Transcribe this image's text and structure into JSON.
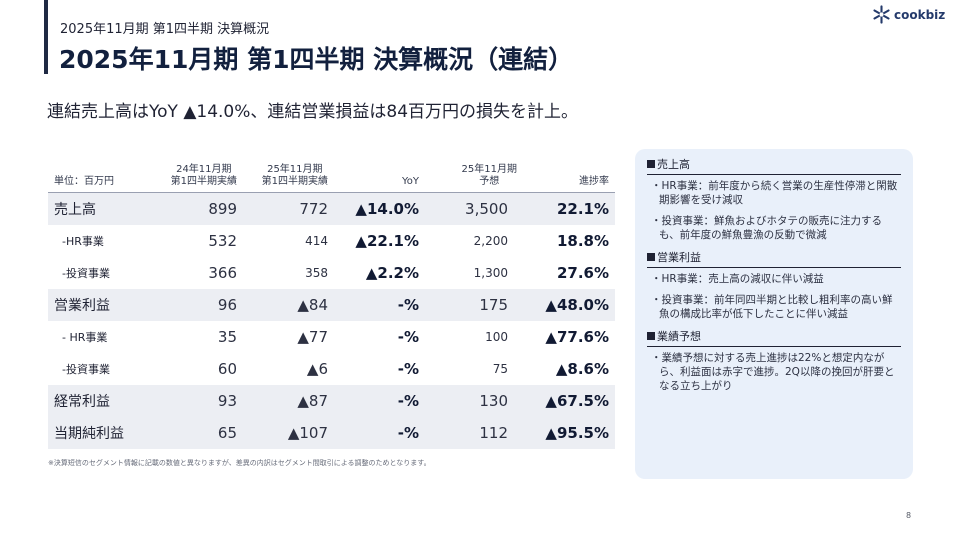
{
  "header": {
    "subtitle": "2025年11月期 第1四半期 決算概況",
    "title": "2025年11月期 第1四半期 決算概況（連結）"
  },
  "logo": {
    "text": "cookbiz",
    "icon": "snowflake-star-icon"
  },
  "lead": "連結売上高はYoY ▲14.0%、連結営業損益は84百万円の損失を計上。",
  "table": {
    "columns": {
      "label": "単位：百万円",
      "y24": [
        "24年11月期",
        "第1四半期実績"
      ],
      "y25": [
        "25年11月期",
        "第1四半期実績"
      ],
      "yoy": "YoY",
      "forecast": [
        "25年11月期",
        "予想"
      ],
      "progress": "進捗率"
    },
    "rows": [
      {
        "label": "売上高",
        "y24": "899",
        "y25": "772",
        "yoy": "▲14.0%",
        "forecast": "3,500",
        "progress": "22.1%"
      },
      {
        "label": "-HR事業",
        "y24": "532",
        "y25": "414",
        "yoy": "▲22.1%",
        "forecast": "2,200",
        "progress": "18.8%"
      },
      {
        "label": "-投資事業",
        "y24": "366",
        "y25": "358",
        "yoy": "▲2.2%",
        "forecast": "1,300",
        "progress": "27.6%"
      },
      {
        "label": "営業利益",
        "y24": "96",
        "y25": "▲84",
        "yoy": "-%",
        "forecast": "175",
        "progress": "▲48.0%"
      },
      {
        "label": "- HR事業",
        "y24": "35",
        "y25": "▲77",
        "yoy": "-%",
        "forecast": "100",
        "progress": "▲77.6%"
      },
      {
        "label": "-投資事業",
        "y24": "60",
        "y25": "▲6",
        "yoy": "-%",
        "forecast": "75",
        "progress": "▲8.6%"
      },
      {
        "label": "経常利益",
        "y24": "93",
        "y25": "▲87",
        "yoy": "-%",
        "forecast": "130",
        "progress": "▲67.5%"
      },
      {
        "label": "当期純利益",
        "y24": "65",
        "y25": "▲107",
        "yoy": "-%",
        "forecast": "112",
        "progress": "▲95.5%"
      }
    ],
    "footnote": "※決算短信のセグメント情報に記載の数値と異なりますが、差異の内訳はセグメント間取引による調整のためとなります。"
  },
  "sidebox": {
    "sections": [
      {
        "title": "売上高",
        "bullets": [
          "・HR事業：前年度から続く営業の生産性停滞と閑散期影響を受け減収",
          "・投資事業：鮮魚およびホタテの販売に注力するも、前年度の鮮魚豊漁の反動で微減"
        ]
      },
      {
        "title": "営業利益",
        "bullets": [
          "・HR事業：売上高の減収に伴い減益",
          "・投資事業：前年同四半期と比較し粗利率の高い鮮魚の構成比率が低下したことに伴い減益"
        ]
      },
      {
        "title": "業績予想",
        "bullets": [
          "・業績予想に対する売上進捗は22%と想定内ながら、利益面は赤字で進捗。2Q以降の挽回が肝要となる立ち上がり"
        ]
      }
    ]
  },
  "page_number": "8"
}
